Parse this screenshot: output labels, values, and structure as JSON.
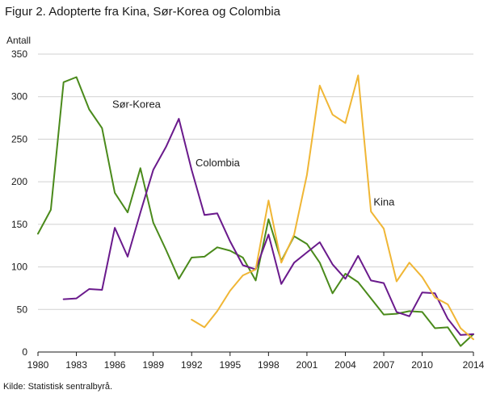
{
  "title": "Figur 2. Adopterte fra Kina, Sør-Korea og Colombia",
  "source": "Kilde: Statistisk sentralbyrå.",
  "chart_data": {
    "type": "line",
    "title": "Figur 2. Adopterte fra Kina, Sør-Korea og Colombia",
    "ylabel": "Antall",
    "xlabel": "",
    "xlim": [
      1980,
      2014
    ],
    "ylim": [
      0,
      350
    ],
    "xticks": [
      1980,
      1983,
      1986,
      1989,
      1992,
      1995,
      1998,
      2001,
      2004,
      2007,
      2010,
      2014
    ],
    "yticks": [
      0,
      50,
      100,
      150,
      200,
      250,
      300,
      350
    ],
    "grid": "horizontal",
    "legend": "inline labels",
    "series": [
      {
        "name": "Sør-Korea",
        "color": "#4a8a1b",
        "x": [
          1980,
          1981,
          1982,
          1983,
          1984,
          1985,
          1986,
          1987,
          1988,
          1989,
          1990,
          1991,
          1992,
          1993,
          1994,
          1995,
          1996,
          1997,
          1998,
          1999,
          2000,
          2001,
          2002,
          2003,
          2004,
          2005,
          2006,
          2007,
          2008,
          2009,
          2010,
          2011,
          2012,
          2013,
          2014
        ],
        "values": [
          139,
          167,
          317,
          323,
          285,
          263,
          187,
          164,
          216,
          152,
          120,
          86,
          111,
          112,
          123,
          119,
          111,
          84,
          156,
          107,
          136,
          127,
          105,
          69,
          92,
          82,
          63,
          44,
          45,
          48,
          47,
          28,
          29,
          7,
          21
        ]
      },
      {
        "name": "Colombia",
        "color": "#6a1a8c",
        "x": [
          1982,
          1983,
          1984,
          1985,
          1986,
          1987,
          1988,
          1989,
          1990,
          1991,
          1992,
          1993,
          1994,
          1995,
          1996,
          1997,
          1998,
          1999,
          2000,
          2001,
          2002,
          2003,
          2004,
          2005,
          2006,
          2007,
          2008,
          2009,
          2010,
          2011,
          2012,
          2013,
          2014
        ],
        "values": [
          62,
          63,
          74,
          73,
          146,
          112,
          164,
          214,
          241,
          274,
          214,
          161,
          163,
          130,
          102,
          97,
          138,
          80,
          105,
          117,
          129,
          103,
          86,
          113,
          84,
          81,
          47,
          42,
          70,
          69,
          39,
          20,
          21
        ]
      },
      {
        "name": "Kina",
        "color": "#f0b635",
        "x": [
          1992,
          1993,
          1994,
          1995,
          1996,
          1997,
          1998,
          1999,
          2000,
          2001,
          2002,
          2003,
          2004,
          2005,
          2006,
          2007,
          2008,
          2009,
          2010,
          2011,
          2012,
          2013,
          2014
        ],
        "values": [
          38,
          29,
          48,
          72,
          90,
          97,
          178,
          105,
          138,
          208,
          313,
          279,
          269,
          325,
          165,
          145,
          83,
          105,
          88,
          64,
          56,
          28,
          15
        ]
      }
    ],
    "annotations": [
      {
        "text": "Sør-Korea",
        "series": "Sør-Korea",
        "x": 1985.8,
        "y": 287
      },
      {
        "text": "Colombia",
        "series": "Colombia",
        "x": 1992.3,
        "y": 218
      },
      {
        "text": "Kina",
        "series": "Kina",
        "x": 2006.2,
        "y": 172
      }
    ]
  }
}
